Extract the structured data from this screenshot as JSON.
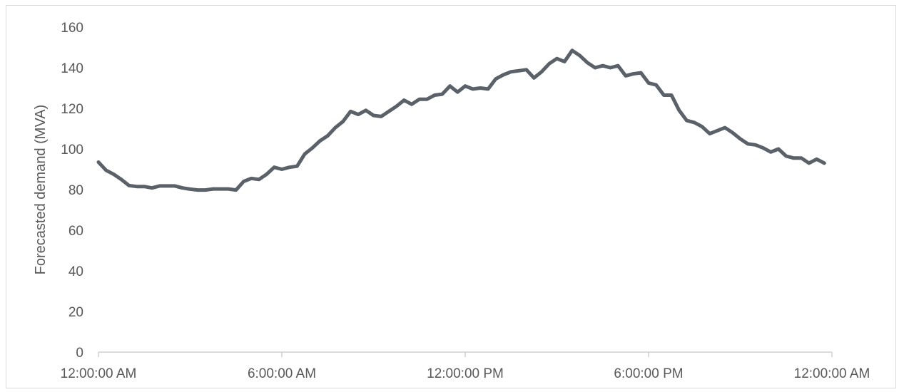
{
  "chart_data": {
    "type": "line",
    "title": "",
    "xlabel": "",
    "ylabel": "Forecasted demand (MVA)",
    "ylim": [
      0,
      160
    ],
    "yticks": [
      0,
      20,
      40,
      60,
      80,
      100,
      120,
      140,
      160
    ],
    "xlim": [
      0,
      24
    ],
    "xticks": [
      0,
      6,
      12,
      18,
      24
    ],
    "xtick_labels": [
      "12:00:00 AM",
      "6:00:00 AM",
      "12:00:00 PM",
      "6:00:00 PM",
      "12:00:00 AM"
    ],
    "grid": false,
    "line_color": "#5a6168",
    "series": [
      {
        "name": "",
        "x": [
          0.0,
          0.25,
          0.5,
          0.75,
          1.0,
          1.25,
          1.5,
          1.75,
          2.0,
          2.25,
          2.5,
          2.75,
          3.0,
          3.25,
          3.5,
          3.75,
          4.0,
          4.25,
          4.5,
          4.75,
          5.0,
          5.25,
          5.5,
          5.75,
          6.0,
          6.25,
          6.5,
          6.75,
          7.0,
          7.25,
          7.5,
          7.75,
          8.0,
          8.25,
          8.5,
          8.75,
          9.0,
          9.25,
          9.5,
          9.75,
          10.0,
          10.25,
          10.5,
          10.75,
          11.0,
          11.25,
          11.5,
          11.75,
          12.0,
          12.25,
          12.5,
          12.75,
          13.0,
          13.25,
          13.5,
          13.75,
          14.0,
          14.25,
          14.5,
          14.75,
          15.0,
          15.25,
          15.5,
          15.75,
          16.0,
          16.25,
          16.5,
          16.75,
          17.0,
          17.25,
          17.5,
          17.75,
          18.0,
          18.25,
          18.5,
          18.75,
          19.0,
          19.25,
          19.5,
          19.75,
          20.0,
          20.25,
          20.5,
          20.75,
          21.0,
          21.25,
          21.5,
          21.75,
          22.0,
          22.25,
          22.5,
          22.75,
          23.0,
          23.25,
          23.5,
          23.75
        ],
        "values": [
          93.5,
          89.5,
          87.5,
          85,
          82,
          81.5,
          81.5,
          80.8,
          81.8,
          81.8,
          81.8,
          80.8,
          80.2,
          79.8,
          79.8,
          80.3,
          80.3,
          80.3,
          79.8,
          84,
          85.5,
          85,
          87.5,
          91,
          90,
          91,
          91.5,
          97.5,
          100.5,
          104,
          106.5,
          110.5,
          113.5,
          118.5,
          117,
          119,
          116.5,
          116,
          118.5,
          121,
          124,
          122,
          124.5,
          124.5,
          126.5,
          127,
          131,
          128,
          131,
          129.5,
          130,
          129.5,
          134.5,
          136.5,
          138,
          138.5,
          139,
          135,
          138,
          142,
          144.5,
          143,
          148.5,
          146,
          142.5,
          140,
          141,
          140,
          141,
          136,
          137,
          137.5,
          132.5,
          131.5,
          126.5,
          126.5,
          119,
          114,
          113,
          111,
          107.5,
          109,
          110.5,
          108,
          105,
          102.5,
          102,
          100.5,
          98.5,
          100,
          96.5,
          95.5,
          95.5,
          93,
          95,
          93
        ]
      }
    ]
  }
}
